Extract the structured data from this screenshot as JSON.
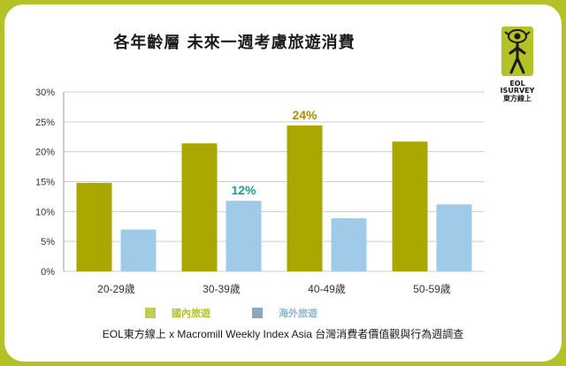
{
  "title": "各年齡層 未來一週考慮旅遊消費",
  "logo": {
    "line1": "EOL",
    "line2": "ISURVEY",
    "line3": "東方線上"
  },
  "chart_data": {
    "type": "bar",
    "categories": [
      "20-29歲",
      "30-39歲",
      "40-49歲",
      "50-59歲"
    ],
    "series": [
      {
        "name": "國內旅遊",
        "color": "#aaa800",
        "values": [
          14.8,
          21.4,
          24.4,
          21.7
        ]
      },
      {
        "name": "海外旅遊",
        "color": "#9fcbe8",
        "values": [
          7.0,
          11.8,
          8.9,
          11.2
        ]
      }
    ],
    "ylim": [
      0,
      30
    ],
    "yticks": [
      "0%",
      "5%",
      "10%",
      "15%",
      "20%",
      "25%",
      "30%"
    ],
    "annotations": [
      {
        "series": 0,
        "category": 2,
        "text": "24%",
        "color": "#b08a00"
      },
      {
        "series": 1,
        "category": 1,
        "text": "12%",
        "color": "#1aa0a0"
      }
    ],
    "grid": true,
    "legend_position": "bottom"
  },
  "legend": {
    "domestic": {
      "label": "國內旅遊",
      "swatch_color": "#c2cc52",
      "text_color": "#b5c227"
    },
    "overseas": {
      "label": "海外旅遊",
      "swatch_color": "#8aa9bd",
      "text_color": "#8fb7cf"
    }
  },
  "footer": "EOL東方線上 x Macromill Weekly Index Asia 台灣消費者價值觀與行為週調查"
}
